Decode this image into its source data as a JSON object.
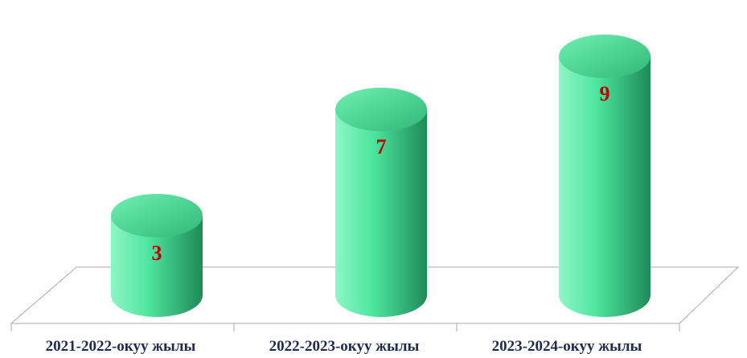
{
  "chart_data": {
    "type": "bar",
    "style": "3d-cylinder",
    "categories": [
      "2021-2022-окуу жылы",
      "2022-2023-окуу жылы",
      "2023-2024-окуу жылы"
    ],
    "values": [
      3,
      7,
      9
    ],
    "title": "",
    "xlabel": "",
    "ylabel": "",
    "ylim": [
      0,
      10
    ],
    "grid": false,
    "legend": "none",
    "colors": {
      "bar_light": "#8ff5c6",
      "bar_mid": "#4fe6a0",
      "bar_dark": "#1f8a58",
      "top_light": "#6ff0b2",
      "top_dark": "#2fb878",
      "value_label": "#c00000",
      "category_label": "#1f2a4f",
      "floor_line": "#aaaaaa"
    }
  }
}
